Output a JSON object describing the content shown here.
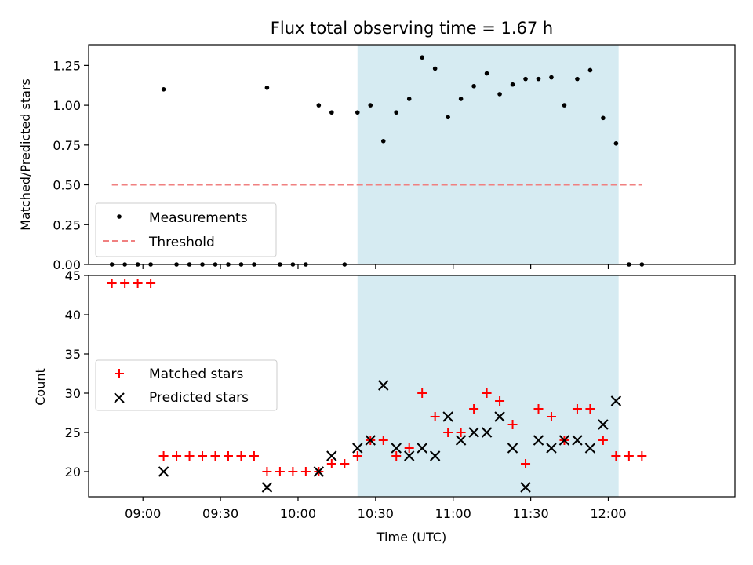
{
  "chart_data": [
    {
      "type": "scatter",
      "title": "Flux total observing time = 1.67 h",
      "xlabel": "",
      "ylabel": "Matched/Predicted stars",
      "ylim": [
        0,
        1.38
      ],
      "yticks": [
        "0.00",
        "0.25",
        "0.50",
        "0.75",
        "1.00",
        "1.25"
      ],
      "x_range": [
        "08:39",
        "12:49"
      ],
      "shaded_span": [
        "10:23",
        "12:04"
      ],
      "shaded_color": "#add8e6",
      "grid": false,
      "legend_position": "lower-left",
      "series": [
        {
          "name": "Measurements",
          "marker": "dot",
          "color": "#000000",
          "points": [
            [
              "08:48",
              0
            ],
            [
              "08:53",
              0
            ],
            [
              "08:58",
              0
            ],
            [
              "09:03",
              0
            ],
            [
              "09:08",
              1.1
            ],
            [
              "09:13",
              0
            ],
            [
              "09:18",
              0
            ],
            [
              "09:23",
              0
            ],
            [
              "09:28",
              0
            ],
            [
              "09:33",
              0
            ],
            [
              "09:38",
              0
            ],
            [
              "09:43",
              0
            ],
            [
              "09:48",
              1.11
            ],
            [
              "09:53",
              0
            ],
            [
              "09:58",
              0
            ],
            [
              "10:03",
              0
            ],
            [
              "10:08",
              1.0
            ],
            [
              "10:13",
              0.955
            ],
            [
              "10:18",
              0
            ],
            [
              "10:23",
              0.955
            ],
            [
              "10:28",
              1.0
            ],
            [
              "10:33",
              0.775
            ],
            [
              "10:38",
              0.955
            ],
            [
              "10:43",
              1.04
            ],
            [
              "10:48",
              1.3
            ],
            [
              "10:53",
              1.23
            ],
            [
              "10:58",
              0.925
            ],
            [
              "11:03",
              1.04
            ],
            [
              "11:08",
              1.12
            ],
            [
              "11:13",
              1.2
            ],
            [
              "11:18",
              1.07
            ],
            [
              "11:23",
              1.13
            ],
            [
              "11:28",
              1.165
            ],
            [
              "11:33",
              1.165
            ],
            [
              "11:38",
              1.175
            ],
            [
              "11:43",
              1.0
            ],
            [
              "11:48",
              1.165
            ],
            [
              "11:53",
              1.22
            ],
            [
              "11:58",
              0.92
            ],
            [
              "12:03",
              0.76
            ],
            [
              "12:08",
              0
            ],
            [
              "12:13",
              0
            ]
          ]
        },
        {
          "name": "Threshold",
          "style": "dashed-line",
          "color": "#f08080",
          "points": [
            [
              "08:48",
              0.5
            ],
            [
              "12:13",
              0.5
            ]
          ]
        }
      ]
    },
    {
      "type": "scatter",
      "title": "",
      "xlabel": "Time (UTC)",
      "ylabel": "Count",
      "ylim": [
        16.8,
        45
      ],
      "yticks": [
        "20",
        "25",
        "30",
        "35",
        "40",
        "45"
      ],
      "x_range": [
        "08:39",
        "12:49"
      ],
      "xticks": [
        "09:00",
        "09:30",
        "10:00",
        "10:30",
        "11:00",
        "11:30",
        "12:00"
      ],
      "shaded_span": [
        "10:23",
        "12:04"
      ],
      "shaded_color": "#add8e6",
      "grid": false,
      "legend_position": "center-left",
      "series": [
        {
          "name": "Matched stars",
          "marker": "plus",
          "color": "#ff0000",
          "points": [
            [
              "08:48",
              44
            ],
            [
              "08:53",
              44
            ],
            [
              "08:58",
              44
            ],
            [
              "09:03",
              44
            ],
            [
              "09:08",
              22
            ],
            [
              "09:13",
              22
            ],
            [
              "09:18",
              22
            ],
            [
              "09:23",
              22
            ],
            [
              "09:28",
              22
            ],
            [
              "09:33",
              22
            ],
            [
              "09:38",
              22
            ],
            [
              "09:43",
              22
            ],
            [
              "09:48",
              20
            ],
            [
              "09:53",
              20
            ],
            [
              "09:58",
              20
            ],
            [
              "10:03",
              20
            ],
            [
              "10:08",
              20
            ],
            [
              "10:13",
              21
            ],
            [
              "10:18",
              21
            ],
            [
              "10:23",
              22
            ],
            [
              "10:28",
              24
            ],
            [
              "10:33",
              24
            ],
            [
              "10:38",
              22
            ],
            [
              "10:43",
              23
            ],
            [
              "10:48",
              30
            ],
            [
              "10:53",
              27
            ],
            [
              "10:58",
              25
            ],
            [
              "11:03",
              25
            ],
            [
              "11:08",
              28
            ],
            [
              "11:13",
              30
            ],
            [
              "11:18",
              29
            ],
            [
              "11:23",
              26
            ],
            [
              "11:28",
              21
            ],
            [
              "11:33",
              28
            ],
            [
              "11:38",
              27
            ],
            [
              "11:43",
              24
            ],
            [
              "11:48",
              28
            ],
            [
              "11:53",
              28
            ],
            [
              "11:58",
              24
            ],
            [
              "12:03",
              22
            ],
            [
              "12:08",
              22
            ],
            [
              "12:13",
              22
            ]
          ]
        },
        {
          "name": "Predicted stars",
          "marker": "x",
          "color": "#000000",
          "points": [
            [
              "09:08",
              20
            ],
            [
              "09:48",
              18
            ],
            [
              "10:08",
              20
            ],
            [
              "10:13",
              22
            ],
            [
              "10:23",
              23
            ],
            [
              "10:28",
              24
            ],
            [
              "10:33",
              31
            ],
            [
              "10:38",
              23
            ],
            [
              "10:43",
              22
            ],
            [
              "10:48",
              23
            ],
            [
              "10:53",
              22
            ],
            [
              "10:58",
              27
            ],
            [
              "11:03",
              24
            ],
            [
              "11:08",
              25
            ],
            [
              "11:13",
              25
            ],
            [
              "11:18",
              27
            ],
            [
              "11:23",
              23
            ],
            [
              "11:28",
              18
            ],
            [
              "11:33",
              24
            ],
            [
              "11:38",
              23
            ],
            [
              "11:43",
              24
            ],
            [
              "11:48",
              24
            ],
            [
              "11:53",
              23
            ],
            [
              "11:58",
              26
            ],
            [
              "12:03",
              29
            ]
          ]
        }
      ]
    }
  ]
}
